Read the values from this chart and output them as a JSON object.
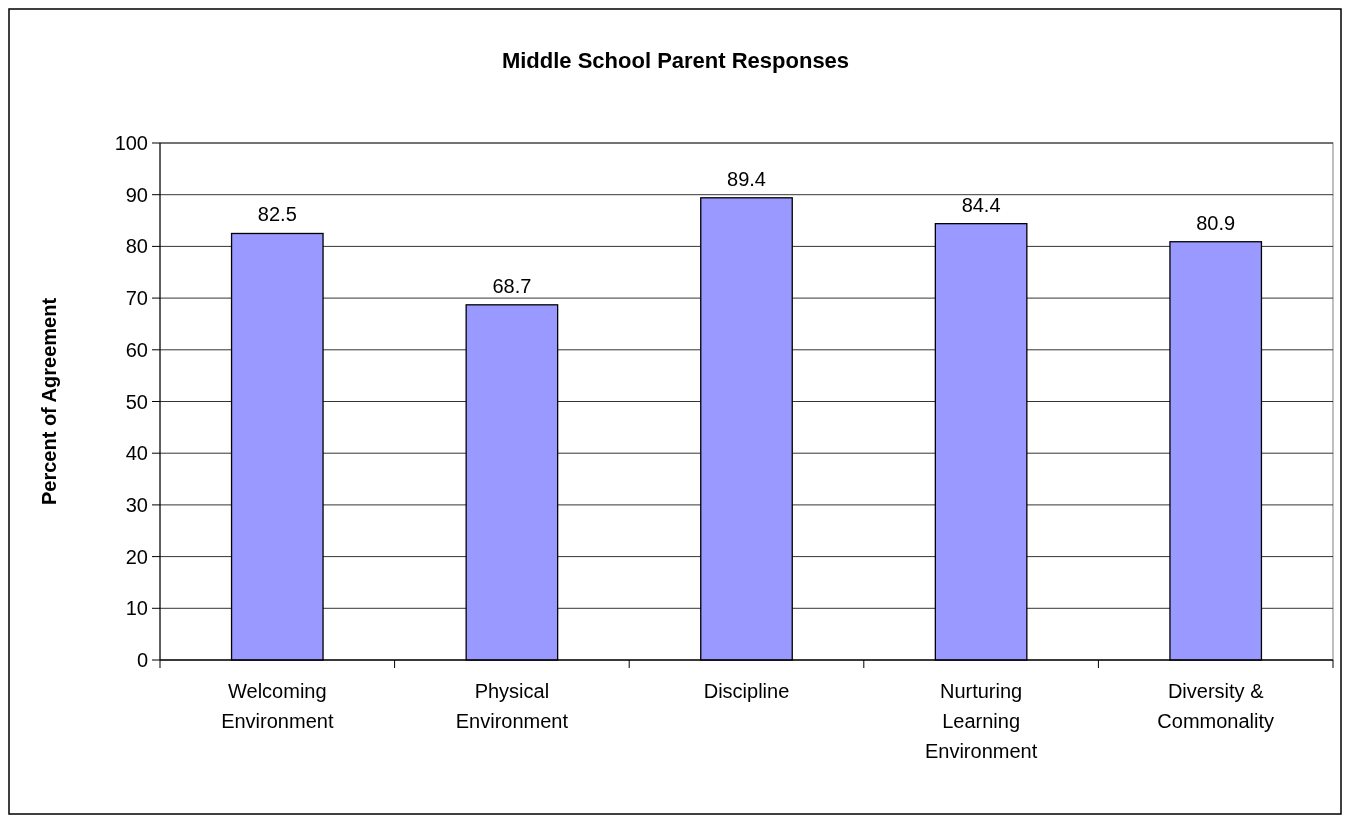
{
  "chart_data": {
    "type": "bar",
    "title": "Middle School Parent Responses",
    "ylabel": "Percent of Agreement",
    "categories": [
      "Welcoming Environment",
      "Physical Environment",
      "Discipline",
      "Nurturing Learning Environment",
      "Diversity & Commonality"
    ],
    "values": [
      82.5,
      68.7,
      89.4,
      84.4,
      80.9
    ],
    "color": "#9999ff",
    "ylim": [
      0,
      100
    ],
    "yticks": [
      0,
      10,
      20,
      30,
      40,
      50,
      60,
      70,
      80,
      90,
      100
    ],
    "grid": "y",
    "data_labels": true
  }
}
